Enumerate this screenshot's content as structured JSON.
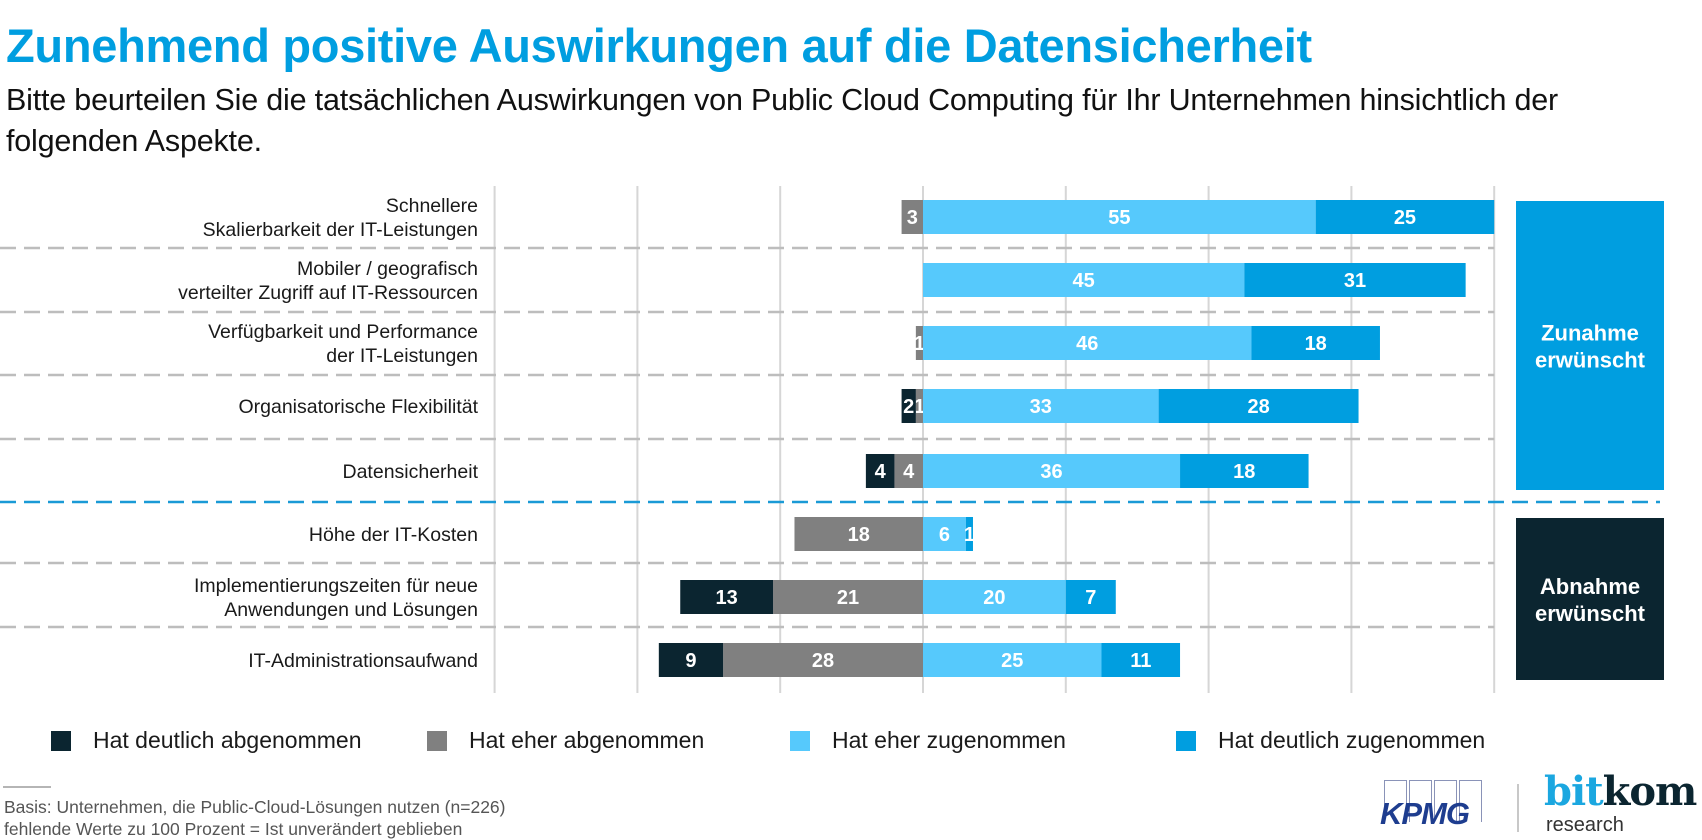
{
  "header": {
    "title": "Zunehmend positive Auswirkungen auf die Datensicherheit",
    "subtitle": "Bitte beurteilen Sie die tatsächlichen Auswirkungen von Public Cloud Computing für Ihr Unternehmen hinsichtlich der folgenden Aspekte."
  },
  "colors": {
    "title": "#009ee0",
    "hat_deutlich_abgenommen": "#0b2530",
    "hat_eher_abgenommen": "#808080",
    "hat_eher_zugenommen": "#56c9fc",
    "hat_deutlich_zugenommen": "#009ee0",
    "box_zunahme": "#009ee0",
    "box_abnahme": "#0b2530",
    "group_separator": "#1a9ad6"
  },
  "chart_data": {
    "type": "bar",
    "orientation": "horizontal-diverging-stacked",
    "title": "Zunehmend positive Auswirkungen auf die Datensicherheit",
    "xlabel": "",
    "ylabel": "",
    "unit": "Prozent",
    "xlim": [
      -60,
      80
    ],
    "grid": true,
    "gridlines": [
      -60,
      -40,
      -20,
      0,
      20,
      40,
      60,
      80
    ],
    "legend_position": "bottom",
    "categories": [
      [
        "Schnellere",
        "Skalierbarkeit der IT-Leistungen"
      ],
      [
        "Mobiler / geografisch",
        "verteilter Zugriff auf IT-Ressourcen"
      ],
      [
        "Verfügbarkeit und Performance",
        "der IT-Leistungen"
      ],
      [
        "Organisatorische Flexibilität"
      ],
      [
        "Datensicherheit"
      ],
      [
        "Höhe der IT-Kosten"
      ],
      [
        "Implementierungszeiten für neue",
        "Anwendungen und Lösungen"
      ],
      [
        "IT-Administrationsaufwand"
      ]
    ],
    "series": [
      {
        "name": "Hat deutlich abgenommen",
        "key": "hat_deutlich_abgenommen",
        "side": "negative",
        "values": [
          0,
          0,
          0,
          2,
          4,
          0,
          13,
          9
        ]
      },
      {
        "name": "Hat eher abgenommen",
        "key": "hat_eher_abgenommen",
        "side": "negative",
        "values": [
          3,
          0,
          1,
          1,
          4,
          18,
          21,
          28
        ]
      },
      {
        "name": "Hat eher zugenommen",
        "key": "hat_eher_zugenommen",
        "side": "positive",
        "values": [
          55,
          45,
          46,
          33,
          36,
          6,
          20,
          25
        ]
      },
      {
        "name": "Hat deutlich zugenommen",
        "key": "hat_deutlich_zugenommen",
        "side": "positive",
        "values": [
          25,
          31,
          18,
          28,
          18,
          1,
          7,
          11
        ]
      }
    ],
    "groups": [
      {
        "label": [
          "Zunahme",
          "erwünscht"
        ],
        "rows": [
          0,
          1,
          2,
          3,
          4
        ],
        "color_key": "box_zunahme"
      },
      {
        "label": [
          "Abnahme",
          "erwünscht"
        ],
        "rows": [
          5,
          6,
          7
        ],
        "color_key": "box_abnahme"
      }
    ]
  },
  "legend": [
    {
      "label": "Hat deutlich abgenommen",
      "color_key": "hat_deutlich_abgenommen"
    },
    {
      "label": "Hat eher abgenommen",
      "color_key": "hat_eher_abgenommen"
    },
    {
      "label": "Hat eher zugenommen",
      "color_key": "hat_eher_zugenommen"
    },
    {
      "label": "Hat deutlich zugenommen",
      "color_key": "hat_deutlich_zugenommen"
    }
  ],
  "footnote": {
    "line1": "Basis: Unternehmen, die Public-Cloud-Lösungen nutzen (n=226)",
    "line2": "fehlende Werte zu 100 Prozent = Ist unverändert geblieben"
  },
  "logos": {
    "kpmg": "KPMG",
    "bitkom_bit": "bit",
    "bitkom_kom": "kom",
    "bitkom_sub": "research"
  }
}
